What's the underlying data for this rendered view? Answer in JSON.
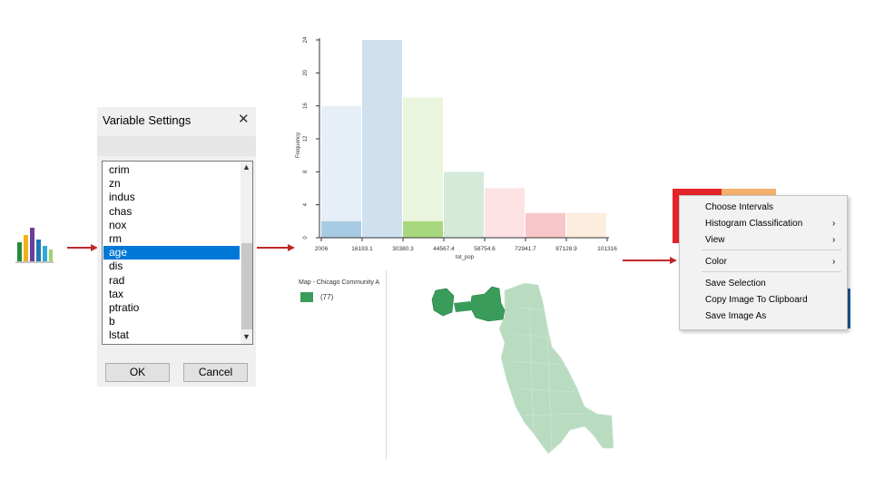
{
  "colors": {
    "selection": "#0078d7",
    "arrow": "#c0282a",
    "map_fill": "#3a9c5a",
    "map_region": "#b9dcc1"
  },
  "dialog": {
    "title": "Variable Settings",
    "close_icon": "close-icon",
    "items": [
      "crim",
      "zn",
      "indus",
      "chas",
      "nox",
      "rm",
      "age",
      "dis",
      "rad",
      "tax",
      "ptratio",
      "b",
      "lstat"
    ],
    "selected": "age",
    "ok_label": "OK",
    "cancel_label": "Cancel"
  },
  "histogram": {
    "chart_data": {
      "type": "bar",
      "xlabel": "tot_pop",
      "ylabel": "Frequency",
      "ylim": [
        0,
        24
      ],
      "yticks": [
        "0",
        "4",
        "8",
        "12",
        "16",
        "20",
        "24"
      ],
      "xticks": [
        "2006",
        "16193.1",
        "30380.3",
        "44567.4",
        "58754.6",
        "72941.7",
        "87128.9",
        "101316"
      ],
      "series": [
        {
          "values": [
            16,
            24,
            17,
            8,
            6,
            3,
            3
          ]
        },
        {
          "values": [
            2,
            0,
            2,
            0,
            0,
            0,
            0
          ]
        }
      ],
      "bar_colors": [
        "#e6eff8",
        "#cfe1ef",
        "#e9f5dc",
        "#d5ead8",
        "#fde2e4",
        "#f8c6c8",
        "#fdeddf"
      ],
      "highlight_colors": [
        "#a7cbe3",
        "#a7cbe3",
        "#a8d87d",
        "#8fcc98",
        "#f6b9bd",
        "#f4a3a6",
        "#f9c9a2"
      ]
    }
  },
  "map": {
    "title": "Map - Chicago Community A",
    "legend_label": "(77)"
  },
  "context_menu": {
    "items": [
      {
        "label": "Choose Intervals",
        "submenu": false
      },
      {
        "label": "Histogram Classification",
        "submenu": true
      },
      {
        "label": "View",
        "submenu": true
      },
      {
        "label": "Color",
        "submenu": true
      },
      {
        "label": "Save Selection",
        "submenu": false
      },
      {
        "label": "Copy Image To Clipboard",
        "submenu": false
      },
      {
        "label": "Save Image As",
        "submenu": false
      }
    ],
    "chevron": "›"
  }
}
